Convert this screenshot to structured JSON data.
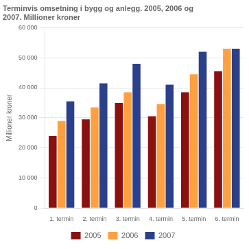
{
  "chart_data": {
    "type": "bar",
    "title": [
      "Terminvis omsetning i bygg og anlegg. 2005, 2006 og",
      "2007. Millioner kroner"
    ],
    "ylabel": "Millioner kroner",
    "categories": [
      "1. termin",
      "2. termin",
      "3. termin",
      "4. termin",
      "5. termin",
      "6. termin"
    ],
    "series": [
      {
        "name": "2005",
        "color": "#8B1010",
        "values": [
          24000,
          29500,
          35000,
          30500,
          38500,
          45500
        ]
      },
      {
        "name": "2006",
        "color": "#FFA040",
        "values": [
          29000,
          33500,
          38500,
          34500,
          44500,
          53000
        ]
      },
      {
        "name": "2007",
        "color": "#2B3F8B",
        "values": [
          35500,
          41500,
          48000,
          41000,
          52000,
          53000
        ]
      }
    ],
    "ylim": [
      0,
      60000
    ],
    "yticks": [
      0,
      {
        "value": 10000,
        "label": "10 000"
      },
      {
        "value": 20000,
        "label": "20 000"
      },
      {
        "value": 30000,
        "label": "30 000"
      },
      {
        "value": 40000,
        "label": "40 000"
      },
      {
        "value": 50000,
        "label": "50 000"
      },
      {
        "value": 60000,
        "label": "60 000"
      }
    ],
    "grid": true,
    "legend": "bottom"
  }
}
